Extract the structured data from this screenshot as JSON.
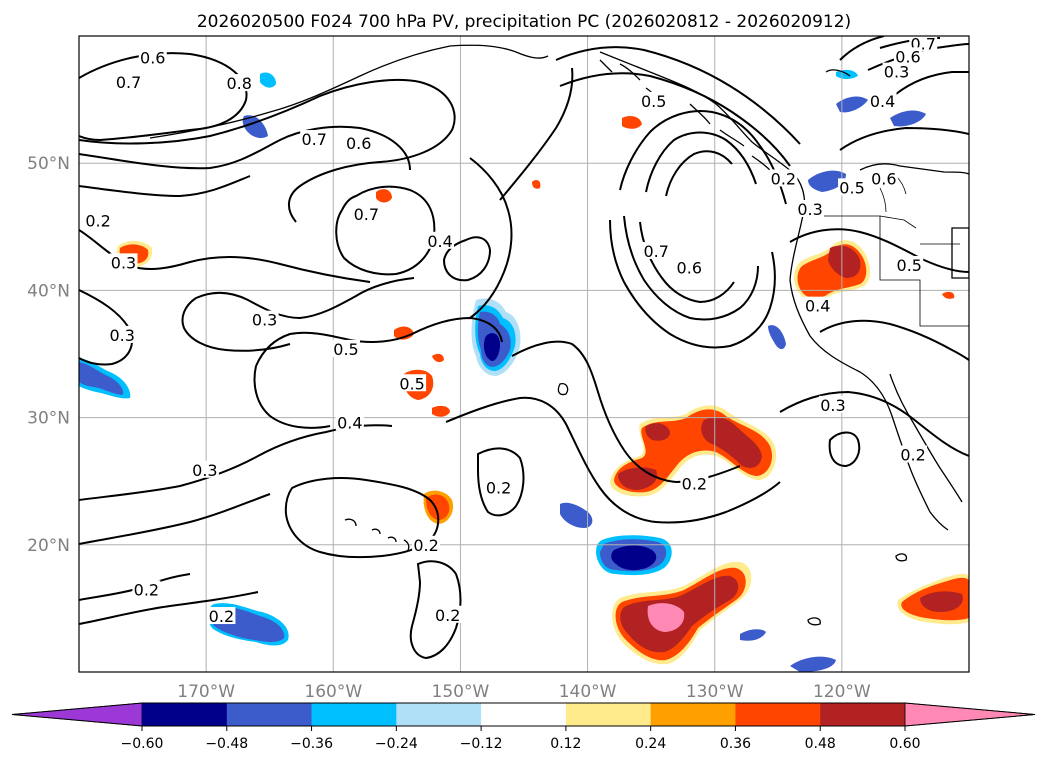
{
  "title": "2026020500 F024 700 hPa PV, precipitation PC (2026020812 - 2026020912)",
  "map": {
    "lon_range": [
      -180,
      -110
    ],
    "lat_range": [
      10,
      60
    ],
    "lat_ticks": [
      {
        "value": 50,
        "label": "50°N"
      },
      {
        "value": 40,
        "label": "40°N"
      },
      {
        "value": 30,
        "label": "30°N"
      },
      {
        "value": 20,
        "label": "20°N"
      }
    ],
    "lon_ticks": [
      {
        "value": -170,
        "label": "170°W"
      },
      {
        "value": -160,
        "label": "160°W"
      },
      {
        "value": -150,
        "label": "150°W"
      },
      {
        "value": -140,
        "label": "140°W"
      },
      {
        "value": -130,
        "label": "130°W"
      },
      {
        "value": -120,
        "label": "120°W"
      }
    ],
    "contour_labels": [
      {
        "text": "0.6",
        "lon": -174.2,
        "lat": 58.3
      },
      {
        "text": "0.7",
        "lon": -176.1,
        "lat": 56.4
      },
      {
        "text": "0.8",
        "lon": -167.4,
        "lat": 56.3
      },
      {
        "text": "0.7",
        "lon": -161.5,
        "lat": 51.9
      },
      {
        "text": "0.6",
        "lon": -158.0,
        "lat": 51.6
      },
      {
        "text": "0.2",
        "lon": -178.5,
        "lat": 45.5
      },
      {
        "text": "0.3",
        "lon": -176.5,
        "lat": 42.2
      },
      {
        "text": "0.7",
        "lon": -157.4,
        "lat": 46.0
      },
      {
        "text": "0.4",
        "lon": -151.6,
        "lat": 43.9
      },
      {
        "text": "0.3",
        "lon": -165.4,
        "lat": 37.7
      },
      {
        "text": "0.3",
        "lon": -176.6,
        "lat": 36.5
      },
      {
        "text": "0.5",
        "lon": -159.0,
        "lat": 35.4
      },
      {
        "text": "0.5",
        "lon": -153.8,
        "lat": 32.7
      },
      {
        "text": "0.4",
        "lon": -158.7,
        "lat": 29.6
      },
      {
        "text": "0.3",
        "lon": -170.1,
        "lat": 25.9
      },
      {
        "text": "0.2",
        "lon": -147.0,
        "lat": 24.5
      },
      {
        "text": "0.2",
        "lon": -152.7,
        "lat": 20.0
      },
      {
        "text": "0.2",
        "lon": -174.7,
        "lat": 16.5
      },
      {
        "text": "0.2",
        "lon": -168.8,
        "lat": 14.4
      },
      {
        "text": "0.2",
        "lon": -151.0,
        "lat": 14.5
      },
      {
        "text": "0.5",
        "lon": -134.8,
        "lat": 54.9
      },
      {
        "text": "0.2",
        "lon": -124.6,
        "lat": 48.8
      },
      {
        "text": "0.3",
        "lon": -122.5,
        "lat": 46.4
      },
      {
        "text": "0.7",
        "lon": -134.6,
        "lat": 43.1
      },
      {
        "text": "0.6",
        "lon": -132.0,
        "lat": 41.8
      },
      {
        "text": "0.6",
        "lon": -116.7,
        "lat": 48.8
      },
      {
        "text": "0.5",
        "lon": -119.2,
        "lat": 48.1
      },
      {
        "text": "0.4",
        "lon": -116.8,
        "lat": 54.9
      },
      {
        "text": "0.3",
        "lon": -115.7,
        "lat": 57.2
      },
      {
        "text": "0.7",
        "lon": -113.6,
        "lat": 59.4
      },
      {
        "text": "0.6",
        "lon": -114.8,
        "lat": 58.4
      },
      {
        "text": "0.5",
        "lon": -114.7,
        "lat": 42.0
      },
      {
        "text": "0.4",
        "lon": -121.9,
        "lat": 38.8
      },
      {
        "text": "0.3",
        "lon": -120.7,
        "lat": 31.0
      },
      {
        "text": "0.2",
        "lon": -114.4,
        "lat": 27.1
      },
      {
        "text": "0.2",
        "lon": -131.6,
        "lat": 24.8
      }
    ]
  },
  "colorbar": {
    "ticks": [
      "−0.60",
      "−0.48",
      "−0.36",
      "−0.24",
      "−0.12",
      "0.12",
      "0.24",
      "0.36",
      "0.48",
      "0.60"
    ],
    "colors": [
      "#9c39d6",
      "#00008b",
      "#3c5ccc",
      "#00bfff",
      "#b0e0f8",
      "#ffffff",
      "#ffea8c",
      "#ffa000",
      "#ff4500",
      "#b22222",
      "#ff88b4"
    ]
  },
  "colors": {
    "grid": "#b0b0b0",
    "contour": "#000000",
    "tick_label": "#808080"
  }
}
